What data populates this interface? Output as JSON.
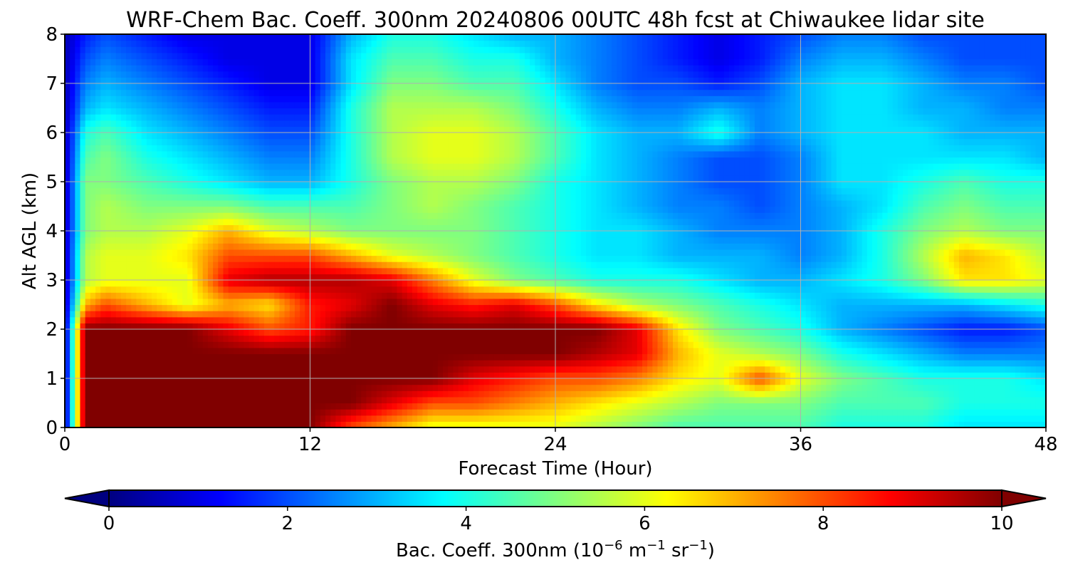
{
  "chart_data": {
    "type": "heatmap",
    "title": "WRF-Chem Bac. Coeff. 300nm  20240806 00UTC 48h fcst at Chiwaukee lidar site",
    "xlabel": "Forecast Time (Hour)",
    "ylabel": "Alt AGL (km)",
    "xlim": [
      0,
      48
    ],
    "ylim": [
      0,
      8
    ],
    "xticks": [
      "0",
      "12",
      "24",
      "36",
      "48"
    ],
    "yticks": [
      "0",
      "1",
      "2",
      "3",
      "4",
      "5",
      "6",
      "7",
      "8"
    ],
    "grid": true,
    "colormap": "jet",
    "colorbar": {
      "label_main": "Bac. Coeff. 300nm  (10",
      "label_exp1": "−6",
      "label_mid": " m",
      "label_exp2": "−1",
      "label_mid2": " sr",
      "label_exp3": "−1",
      "label_end": ")",
      "range": [
        0,
        10
      ],
      "extend": "both",
      "ticks": [
        "0",
        "2",
        "4",
        "6",
        "8",
        "10"
      ],
      "orientation": "horizontal"
    },
    "x_hours": [
      0,
      1,
      2,
      4,
      6,
      8,
      10,
      12,
      14,
      16,
      18,
      20,
      22,
      24,
      26,
      28,
      30,
      32,
      34,
      36,
      38,
      40,
      42,
      44,
      46,
      48
    ],
    "alt_km": [
      0,
      0.5,
      1,
      1.5,
      2,
      2.5,
      3,
      3.5,
      4,
      4.5,
      5,
      5.5,
      6,
      6.5,
      7,
      7.5,
      8
    ],
    "values": [
      [
        0.5,
        10,
        10,
        10,
        10,
        10,
        10,
        10,
        8,
        7,
        6,
        6,
        6,
        6,
        5.5,
        5,
        4.5,
        4.5,
        4.5,
        4.5,
        4,
        4,
        4,
        3.5,
        3.5,
        3.5
      ],
      [
        0.5,
        10,
        10,
        10,
        10,
        10,
        10,
        10,
        10,
        9,
        8,
        8,
        7.5,
        7,
        6.5,
        6,
        5.5,
        5,
        5,
        5,
        4.5,
        4.5,
        4.5,
        4,
        4,
        4
      ],
      [
        0.5,
        10,
        10,
        10,
        10,
        10,
        10,
        10,
        10,
        10,
        10,
        9,
        8.5,
        8,
        8,
        7.5,
        6.5,
        6,
        8,
        6,
        5,
        4.5,
        4,
        4,
        4,
        3.5
      ],
      [
        0.5,
        10,
        10,
        10,
        10,
        10,
        10,
        10,
        10,
        10,
        10,
        10,
        10,
        10,
        9.5,
        9,
        7,
        6,
        5.5,
        5,
        4,
        3.5,
        3,
        2.5,
        2.5,
        2.5
      ],
      [
        0.5,
        10,
        10,
        10,
        10,
        9,
        8,
        8.5,
        10,
        10,
        10,
        10,
        10,
        10,
        10,
        9,
        6.5,
        5,
        4.5,
        4,
        3,
        2.5,
        2,
        1.5,
        1.5,
        2
      ],
      [
        0.5,
        7,
        8,
        7,
        6,
        7,
        6.5,
        8.5,
        9,
        10,
        9,
        8.5,
        9,
        8,
        6.5,
        5.5,
        5,
        4.5,
        4,
        3.5,
        3,
        3,
        3,
        3,
        3.5,
        4
      ],
      [
        0.5,
        5.5,
        6,
        6,
        6,
        9,
        9.5,
        9.5,
        9.5,
        9,
        7.5,
        6,
        5,
        4.5,
        4,
        4,
        4,
        3.5,
        3,
        3,
        3.5,
        4,
        5,
        6.5,
        6.5,
        6
      ],
      [
        0.5,
        5.5,
        6,
        6,
        6.5,
        8,
        8,
        8,
        7,
        6,
        5.5,
        5,
        4.5,
        4,
        3.5,
        3.5,
        3,
        3,
        3,
        2.5,
        3,
        4,
        5.5,
        7,
        6.5,
        5.5
      ],
      [
        0.5,
        5,
        5.5,
        5.5,
        6,
        7,
        6,
        5.5,
        5,
        5,
        5,
        5,
        4.5,
        4,
        3.5,
        3.5,
        3,
        2.5,
        2.5,
        2.5,
        3,
        4,
        5,
        5.5,
        5,
        5
      ],
      [
        0.5,
        5,
        5.5,
        5,
        5,
        5,
        4.5,
        4.5,
        4.5,
        5,
        5.5,
        5,
        4.5,
        4,
        3.5,
        3,
        2.5,
        2.5,
        2,
        2.5,
        3,
        3.5,
        4.5,
        5,
        4.5,
        4.5
      ],
      [
        0.5,
        5,
        5,
        4.5,
        4,
        3.5,
        3,
        3,
        4,
        5,
        5.5,
        5.5,
        5,
        4,
        3.5,
        3,
        2.5,
        2,
        2,
        2.5,
        3.5,
        3.5,
        4,
        4.5,
        4,
        4
      ],
      [
        0.5,
        4.5,
        5,
        4,
        3.5,
        3,
        2.5,
        2.5,
        4,
        5.5,
        6,
        6,
        5.5,
        4.5,
        3.5,
        3,
        2.5,
        2,
        2,
        2.5,
        3.5,
        3.5,
        3.5,
        3.5,
        3.5,
        3
      ],
      [
        0.5,
        4,
        4.5,
        3.5,
        3,
        2.5,
        2,
        2,
        4,
        5.5,
        6,
        6,
        5.5,
        4.5,
        3.5,
        3,
        3,
        4,
        2.5,
        3,
        3.5,
        3.5,
        3.5,
        3,
        3,
        3
      ],
      [
        0.5,
        3,
        3.5,
        3,
        2.5,
        2,
        1.5,
        1.5,
        4,
        5.5,
        5.5,
        5.5,
        5,
        4,
        3,
        2.5,
        2.5,
        3,
        2.5,
        3,
        3.5,
        3.5,
        3,
        3,
        2.5,
        2.5
      ],
      [
        0.5,
        2.5,
        3,
        2.5,
        2,
        1.5,
        1,
        1,
        3.5,
        5,
        5,
        4.5,
        4.5,
        3.5,
        2.5,
        2,
        2,
        1.5,
        2,
        3,
        3.5,
        3.5,
        3,
        2.5,
        2.5,
        2
      ],
      [
        0.5,
        2,
        2.5,
        2,
        1.5,
        1,
        1,
        1,
        3.5,
        4.5,
        4.5,
        4,
        4,
        3,
        2.5,
        2,
        1.5,
        1,
        1.5,
        2.5,
        3,
        3,
        2.5,
        2,
        2,
        2
      ],
      [
        0.5,
        1.5,
        2,
        1.5,
        1,
        1,
        1,
        1,
        3,
        4,
        4,
        3.5,
        3,
        3,
        2.5,
        2,
        1.5,
        1,
        1.5,
        2,
        2.5,
        2.5,
        2,
        2,
        2,
        2
      ]
    ]
  }
}
